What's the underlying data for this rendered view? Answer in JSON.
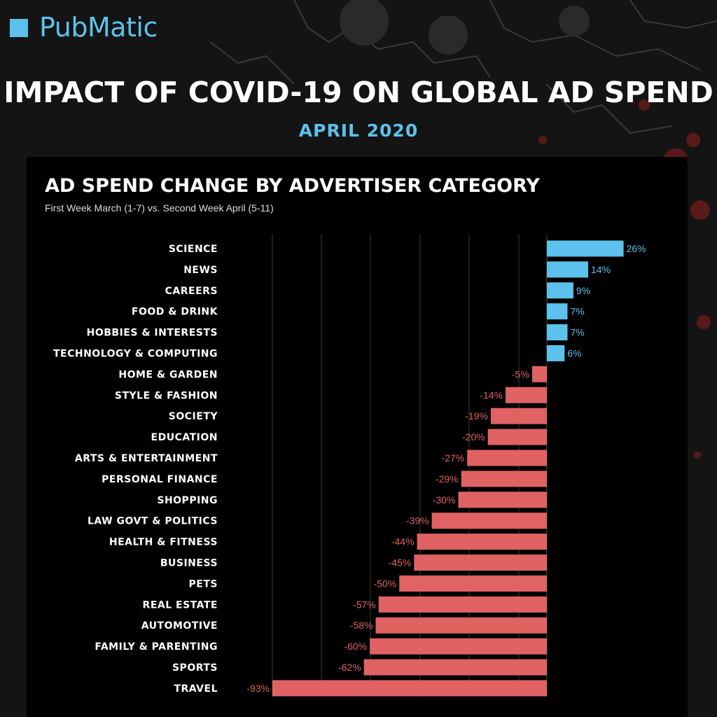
{
  "logo": {
    "text": "PubMatic"
  },
  "header": {
    "title": "IMPACT OF COVID-19 ON GLOBAL AD SPEND",
    "date": "APRIL 2020"
  },
  "colors": {
    "positive": "#5cc1ec",
    "negative": "#e06262",
    "background": "#141414",
    "panel": "#000000"
  },
  "chart_data": {
    "type": "bar",
    "orientation": "horizontal",
    "title": "AD SPEND CHANGE BY ADVERTISER CATEGORY",
    "subtitle": "First Week March (1-7) vs. Second Week April (5-11)",
    "categories": [
      "SCIENCE",
      "NEWS",
      "CAREERS",
      "FOOD & DRINK",
      "HOBBIES & INTERESTS",
      "TECHNOLOGY & COMPUTING",
      "HOME & GARDEN",
      "STYLE & FASHION",
      "SOCIETY",
      "EDUCATION",
      "ARTS & ENTERTAINMENT",
      "PERSONAL FINANCE",
      "SHOPPING",
      "LAW GOVT & POLITICS",
      "HEALTH & FITNESS",
      "BUSINESS",
      "PETS",
      "REAL ESTATE",
      "AUTOMOTIVE",
      "FAMILY & PARENTING",
      "SPORTS",
      "TRAVEL"
    ],
    "values": [
      26,
      14,
      9,
      7,
      7,
      6,
      -5,
      -14,
      -19,
      -20,
      -27,
      -29,
      -30,
      -39,
      -44,
      -45,
      -50,
      -57,
      -58,
      -60,
      -62,
      -93
    ],
    "value_labels": [
      "26%",
      "14%",
      "9%",
      "7%",
      "7%",
      "6%",
      "-5%",
      "-14%",
      "-19%",
      "-20%",
      "-27%",
      "-29%",
      "-30%",
      "-39%",
      "-44%",
      "-45%",
      "-50%",
      "-57%",
      "-58%",
      "-60%",
      "-62%",
      "-93%"
    ],
    "xlim": [
      -93,
      26
    ],
    "grid": true,
    "legend": "none"
  }
}
